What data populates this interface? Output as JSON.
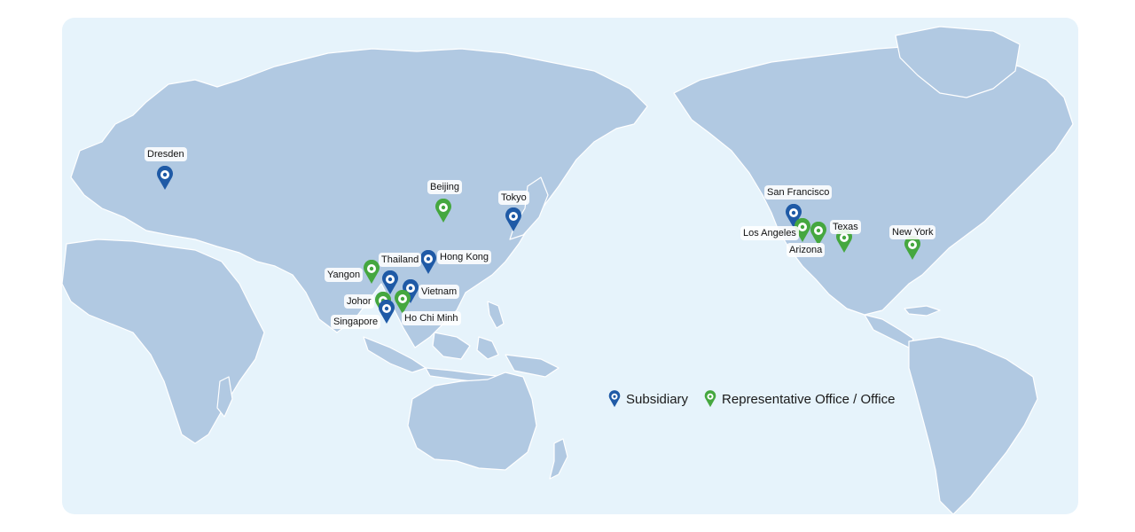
{
  "colors": {
    "subsidiary": "#1f5aa6",
    "office": "#45a73f",
    "ocean": "#e6f3fb",
    "land": "#b1c9e2"
  },
  "legend": {
    "subsidiary_label": "Subsidiary",
    "office_label": "Representative Office / Office"
  },
  "locations": [
    {
      "id": "dresden",
      "name": "Dresden",
      "type": "subsidiary"
    },
    {
      "id": "beijing",
      "name": "Beijing",
      "type": "office"
    },
    {
      "id": "tokyo",
      "name": "Tokyo",
      "type": "subsidiary"
    },
    {
      "id": "hong-kong",
      "name": "Hong Kong",
      "type": "subsidiary"
    },
    {
      "id": "thailand",
      "name": "Thailand",
      "type": "subsidiary"
    },
    {
      "id": "yangon",
      "name": "Yangon",
      "type": "office"
    },
    {
      "id": "vietnam",
      "name": "Vietnam",
      "type": "subsidiary"
    },
    {
      "id": "johor",
      "name": "Johor",
      "type": "office"
    },
    {
      "id": "singapore",
      "name": "Singapore",
      "type": "subsidiary"
    },
    {
      "id": "ho-chi-minh",
      "name": "Ho Chi Minh",
      "type": "office"
    },
    {
      "id": "san-francisco",
      "name": "San Francisco",
      "type": "subsidiary"
    },
    {
      "id": "los-angeles",
      "name": "Los Angeles",
      "type": "office"
    },
    {
      "id": "arizona",
      "name": "Arizona",
      "type": "office"
    },
    {
      "id": "texas",
      "name": "Texas",
      "type": "office"
    },
    {
      "id": "new-york",
      "name": "New York",
      "type": "office"
    }
  ]
}
